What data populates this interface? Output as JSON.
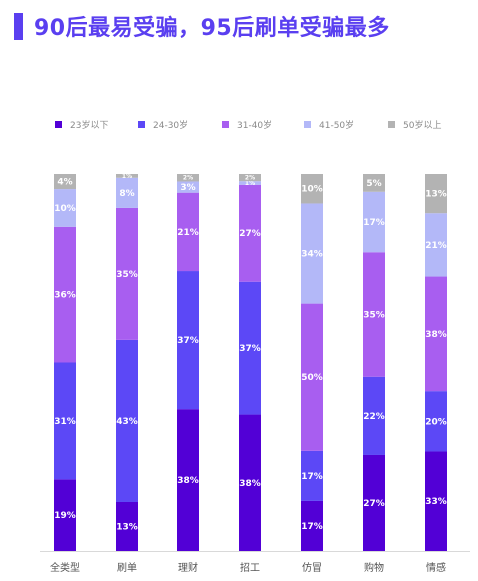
{
  "title": "90后最易受骗，95后刷单受骗最多",
  "chart_data": {
    "type": "bar",
    "stacked": true,
    "normalized": true,
    "categories": [
      "全类型",
      "刷单",
      "理财",
      "招工",
      "仿冒",
      "购物",
      "情感"
    ],
    "series": [
      {
        "name": "23岁以下",
        "color": "#5200d6",
        "values": [
          19,
          13,
          38,
          38,
          17,
          27,
          33
        ]
      },
      {
        "name": "24-30岁",
        "color": "#5c48f6",
        "values": [
          31,
          43,
          37,
          37,
          17,
          22,
          20
        ]
      },
      {
        "name": "31-40岁",
        "color": "#a85ef0",
        "values": [
          36,
          35,
          21,
          27,
          50,
          35,
          38
        ]
      },
      {
        "name": "41-50岁",
        "color": "#b3b8f8",
        "values": [
          10,
          8,
          3,
          1,
          34,
          17,
          21
        ]
      },
      {
        "name": "50岁以上",
        "color": "#b3b3b3",
        "values": [
          4,
          1,
          2,
          2,
          10,
          5,
          13
        ]
      }
    ],
    "ylim": [
      0,
      100
    ],
    "legend_position": "top",
    "grid": false
  }
}
